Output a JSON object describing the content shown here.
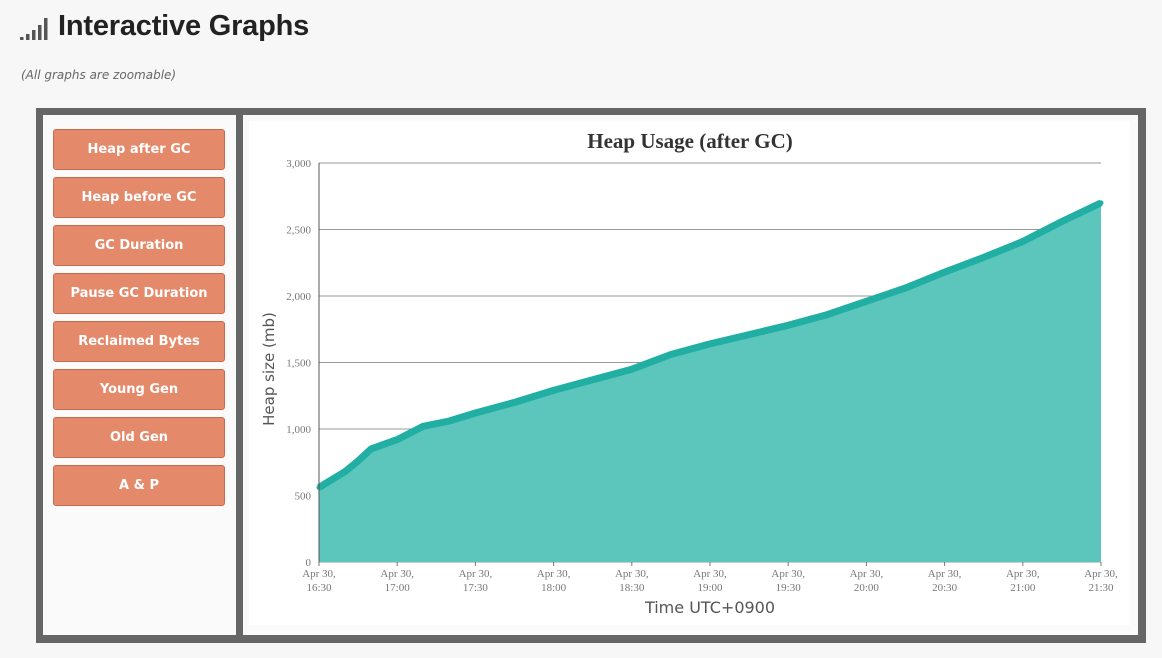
{
  "page": {
    "title": "Interactive Graphs",
    "subtitle": "(All graphs are zoomable)",
    "header_icon": "signal-bars-icon"
  },
  "sidebar": {
    "items": [
      {
        "label": "Heap after GC"
      },
      {
        "label": "Heap before GC"
      },
      {
        "label": "GC Duration"
      },
      {
        "label": "Pause GC Duration"
      },
      {
        "label": "Reclaimed Bytes"
      },
      {
        "label": "Young Gen"
      },
      {
        "label": "Old Gen"
      },
      {
        "label": "A & P"
      }
    ]
  },
  "colors": {
    "button": "#e48a6b",
    "frame": "#666666",
    "area_fill": "#5cc6bd",
    "line": "#21aea3"
  },
  "chart_data": {
    "type": "area",
    "title": "Heap Usage (after GC)",
    "xlabel": "Time UTC+0900",
    "ylabel": "Heap size (mb)",
    "ylim": [
      0,
      3000
    ],
    "yticks": [
      "0",
      "500",
      "1,000",
      "1,500",
      "2,000",
      "2,500",
      "3,000"
    ],
    "xticks": [
      {
        "line1": "Apr 30,",
        "line2": "16:30"
      },
      {
        "line1": "Apr 30,",
        "line2": "17:00"
      },
      {
        "line1": "Apr 30,",
        "line2": "17:30"
      },
      {
        "line1": "Apr 30,",
        "line2": "18:00"
      },
      {
        "line1": "Apr 30,",
        "line2": "18:30"
      },
      {
        "line1": "Apr 30,",
        "line2": "19:00"
      },
      {
        "line1": "Apr 30,",
        "line2": "19:30"
      },
      {
        "line1": "Apr 30,",
        "line2": "20:00"
      },
      {
        "line1": "Apr 30,",
        "line2": "20:30"
      },
      {
        "line1": "Apr 30,",
        "line2": "21:00"
      },
      {
        "line1": "Apr 30,",
        "line2": "21:30"
      }
    ],
    "series": [
      {
        "x": [
          "16:30",
          "16:35",
          "16:40",
          "16:45",
          "16:50",
          "17:00",
          "17:10",
          "17:20",
          "17:30",
          "17:45",
          "18:00",
          "18:15",
          "18:30",
          "18:45",
          "19:00",
          "19:15",
          "19:30",
          "19:45",
          "20:00",
          "20:15",
          "20:30",
          "20:45",
          "21:00",
          "21:15",
          "21:30"
        ],
        "values": [
          560,
          620,
          680,
          760,
          850,
          920,
          1020,
          1060,
          1120,
          1200,
          1290,
          1370,
          1450,
          1560,
          1640,
          1710,
          1780,
          1860,
          1960,
          2060,
          2180,
          2290,
          2410,
          2560,
          2700
        ]
      }
    ],
    "grid": true
  }
}
